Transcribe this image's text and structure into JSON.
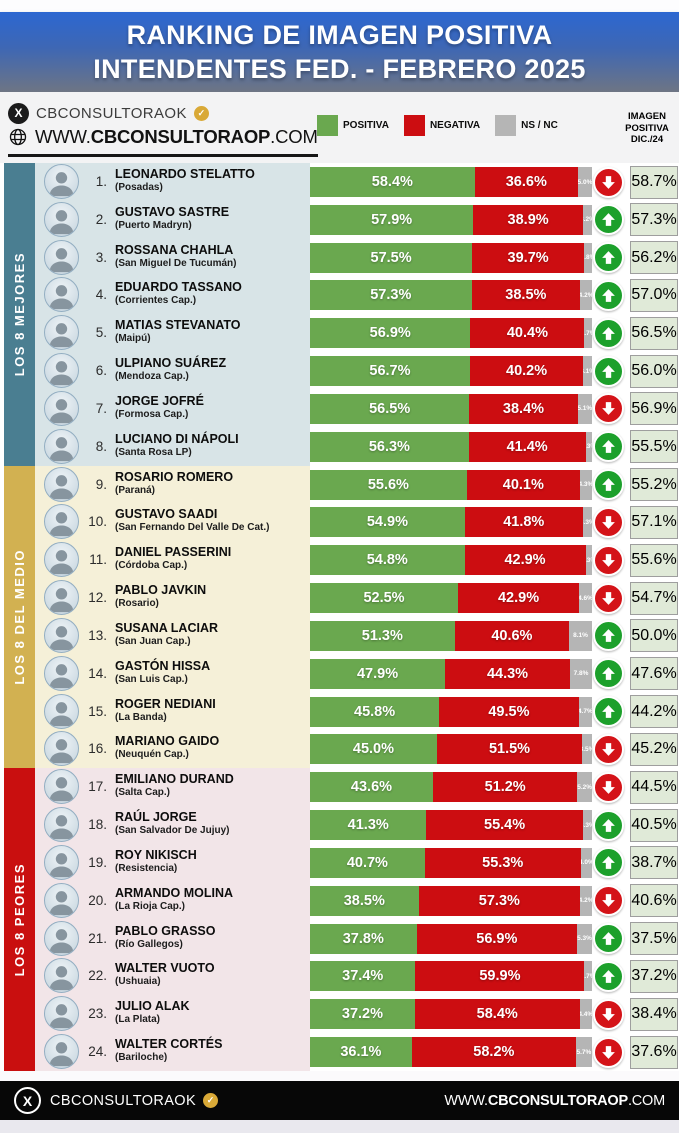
{
  "header": {
    "title_line1": "RANKING DE IMAGEN POSITIVA",
    "title_line2": "INTENDENTES FED. - FEBRERO 2025"
  },
  "subheader": {
    "x_handle": "CBCONSULTORAOK",
    "verified_check": "✓",
    "x_glyph": "X",
    "website": {
      "prefix": "WWW.",
      "bold": "CBCONSULTORAOP",
      "suffix": ".COM"
    },
    "legend": [
      {
        "label": "POSITIVA",
        "color_key": "positiva"
      },
      {
        "label": "NEGATIVA",
        "color_key": "negativa"
      },
      {
        "label": "NS / NC",
        "color_key": "ns_nc"
      }
    ],
    "dic_header_lines": [
      "IMAGEN",
      "POSITIVA",
      "DIC./24"
    ]
  },
  "colors": {
    "positiva": "#6aa84f",
    "negativa": "#cc0d11",
    "ns_nc": "#b5b5b5",
    "trend_up": "#1ca02b",
    "trend_down": "#d41318",
    "dic24_cell_bg": "#e0ead8",
    "header_blue": "#2c67d1",
    "section_mejores": "#4a7e91",
    "section_medio": "#d2b151",
    "section_peores": "#c90f0f"
  },
  "sections": [
    {
      "label": "LOS 8 MEJORES",
      "sidebar_color": "#4a7e91",
      "row_bg": "#d8e4e7",
      "row_start": 0,
      "row_end": 8
    },
    {
      "label": "LOS 8 DEL MEDIO",
      "sidebar_color": "#d2b151",
      "row_bg": "#f5f0d8",
      "row_start": 8,
      "row_end": 16
    },
    {
      "label": "LOS 8 PEORES",
      "sidebar_color": "#c90f0f",
      "row_bg": "#f2e5e8",
      "row_start": 16,
      "row_end": 24
    }
  ],
  "chart_data": {
    "type": "bar",
    "orientation": "horizontal-stacked",
    "title": "RANKING DE IMAGEN POSITIVA INTENDENTES FED. - FEBRERO 2025",
    "series_labels": [
      "POSITIVA",
      "NEGATIVA",
      "NS / NC"
    ],
    "value_unit": "%",
    "xlim": [
      0,
      100
    ],
    "extra_column": "IMAGEN POSITIVA DIC./24",
    "rows": [
      {
        "rank": 1,
        "name": "LEONARDO STELATTO",
        "city": "(Posadas)",
        "positiva": 58.4,
        "negativa": 36.6,
        "ns_nc": 5.0,
        "trend": "down",
        "dic24": 58.7
      },
      {
        "rank": 2,
        "name": "GUSTAVO SASTRE",
        "city": "(Puerto Madryn)",
        "positiva": 57.9,
        "negativa": 38.9,
        "ns_nc": 3.2,
        "trend": "up",
        "dic24": 57.3
      },
      {
        "rank": 3,
        "name": "ROSSANA CHAHLA",
        "city": "(San Miguel De Tucumán)",
        "positiva": 57.5,
        "negativa": 39.7,
        "ns_nc": 2.8,
        "trend": "up",
        "dic24": 56.2
      },
      {
        "rank": 4,
        "name": "EDUARDO TASSANO",
        "city": "(Corrientes Cap.)",
        "positiva": 57.3,
        "negativa": 38.5,
        "ns_nc": 4.2,
        "trend": "up",
        "dic24": 57.0
      },
      {
        "rank": 5,
        "name": "MATIAS STEVANATO",
        "city": "(Maipú)",
        "positiva": 56.9,
        "negativa": 40.4,
        "ns_nc": 2.7,
        "trend": "up",
        "dic24": 56.5
      },
      {
        "rank": 6,
        "name": "ULPIANO SUÁREZ",
        "city": "(Mendoza Cap.)",
        "positiva": 56.7,
        "negativa": 40.2,
        "ns_nc": 3.1,
        "trend": "up",
        "dic24": 56.0
      },
      {
        "rank": 7,
        "name": "JORGE JOFRÉ",
        "city": "(Formosa Cap.)",
        "positiva": 56.5,
        "negativa": 38.4,
        "ns_nc": 5.1,
        "trend": "down",
        "dic24": 56.9
      },
      {
        "rank": 8,
        "name": "LUCIANO DI NÁPOLI",
        "city": "(Santa Rosa LP)",
        "positiva": 56.3,
        "negativa": 41.4,
        "ns_nc": 2.3,
        "trend": "up",
        "dic24": 55.5
      },
      {
        "rank": 9,
        "name": "ROSARIO ROMERO",
        "city": "(Paraná)",
        "positiva": 55.6,
        "negativa": 40.1,
        "ns_nc": 4.3,
        "trend": "up",
        "dic24": 55.2
      },
      {
        "rank": 10,
        "name": "GUSTAVO SAADI",
        "city": "(San Fernando Del Valle De Cat.)",
        "positiva": 54.9,
        "negativa": 41.8,
        "ns_nc": 3.3,
        "trend": "down",
        "dic24": 57.1
      },
      {
        "rank": 11,
        "name": "DANIEL PASSERINI",
        "city": "(Córdoba Cap.)",
        "positiva": 54.8,
        "negativa": 42.9,
        "ns_nc": 2.3,
        "trend": "down",
        "dic24": 55.6
      },
      {
        "rank": 12,
        "name": "PABLO JAVKIN",
        "city": "(Rosario)",
        "positiva": 52.5,
        "negativa": 42.9,
        "ns_nc": 4.6,
        "trend": "down",
        "dic24": 54.7
      },
      {
        "rank": 13,
        "name": "SUSANA LACIAR",
        "city": "(San Juan Cap.)",
        "positiva": 51.3,
        "negativa": 40.6,
        "ns_nc": 8.1,
        "trend": "up",
        "dic24": 50.0
      },
      {
        "rank": 14,
        "name": "GASTÓN HISSA",
        "city": "(San Luis Cap.)",
        "positiva": 47.9,
        "negativa": 44.3,
        "ns_nc": 7.8,
        "trend": "up",
        "dic24": 47.6
      },
      {
        "rank": 15,
        "name": "ROGER NEDIANI",
        "city": "(La Banda)",
        "positiva": 45.8,
        "negativa": 49.5,
        "ns_nc": 4.7,
        "trend": "up",
        "dic24": 44.2
      },
      {
        "rank": 16,
        "name": "MARIANO GAIDO",
        "city": "(Neuquén Cap.)",
        "positiva": 45.0,
        "negativa": 51.5,
        "ns_nc": 3.5,
        "trend": "down",
        "dic24": 45.2
      },
      {
        "rank": 17,
        "name": "EMILIANO DURAND",
        "city": "(Salta Cap.)",
        "positiva": 43.6,
        "negativa": 51.2,
        "ns_nc": 5.2,
        "trend": "down",
        "dic24": 44.5
      },
      {
        "rank": 18,
        "name": "RAÚL JORGE",
        "city": "(San Salvador De Jujuy)",
        "positiva": 41.3,
        "negativa": 55.4,
        "ns_nc": 3.3,
        "trend": "up",
        "dic24": 40.5
      },
      {
        "rank": 19,
        "name": "ROY NIKISCH",
        "city": "(Resistencia)",
        "positiva": 40.7,
        "negativa": 55.3,
        "ns_nc": 4.0,
        "trend": "up",
        "dic24": 38.7
      },
      {
        "rank": 20,
        "name": "ARMANDO MOLINA",
        "city": "(La Rioja Cap.)",
        "positiva": 38.5,
        "negativa": 57.3,
        "ns_nc": 4.2,
        "trend": "down",
        "dic24": 40.6
      },
      {
        "rank": 21,
        "name": "PABLO GRASSO",
        "city": "(Río Gallegos)",
        "positiva": 37.8,
        "negativa": 56.9,
        "ns_nc": 5.3,
        "trend": "up",
        "dic24": 37.5
      },
      {
        "rank": 22,
        "name": "WALTER VUOTO",
        "city": "(Ushuaia)",
        "positiva": 37.4,
        "negativa": 59.9,
        "ns_nc": 2.7,
        "trend": "up",
        "dic24": 37.2
      },
      {
        "rank": 23,
        "name": "JULIO ALAK",
        "city": "(La Plata)",
        "positiva": 37.2,
        "negativa": 58.4,
        "ns_nc": 4.4,
        "trend": "down",
        "dic24": 38.4
      },
      {
        "rank": 24,
        "name": "WALTER CORTÉS",
        "city": "(Bariloche)",
        "positiva": 36.1,
        "negativa": 58.2,
        "ns_nc": 5.7,
        "trend": "down",
        "dic24": 37.6
      }
    ]
  },
  "footer": {
    "x_handle": "CBCONSULTORAOK",
    "x_glyph": "X",
    "verified_check": "✓",
    "website": {
      "prefix": "WWW.",
      "bold": "CBCONSULTORAOP",
      "suffix": ".COM"
    }
  }
}
